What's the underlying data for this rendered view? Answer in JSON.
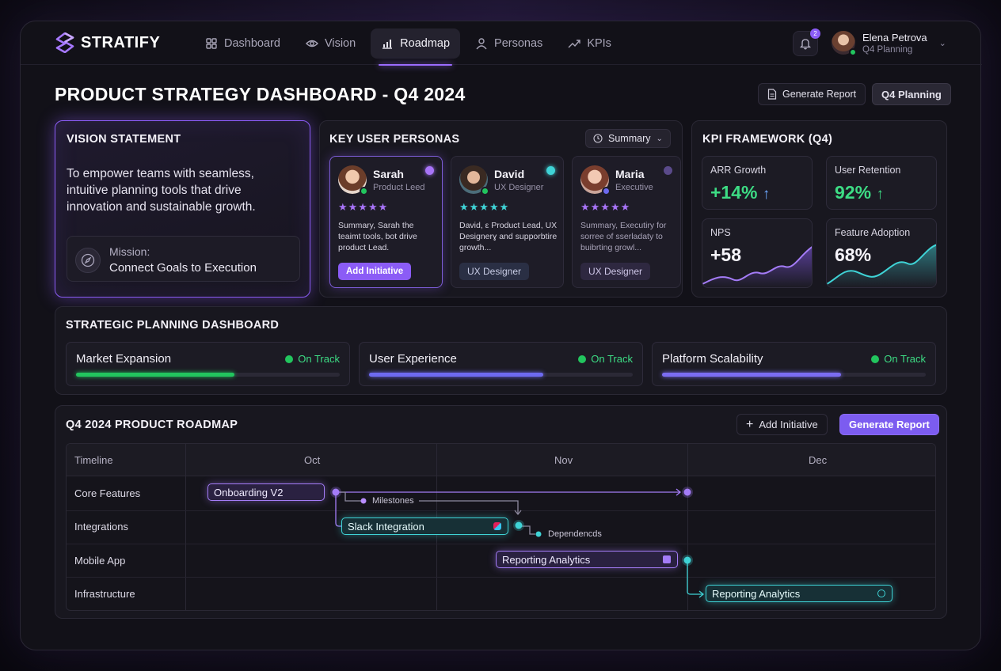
{
  "app": {
    "name": "STRATIFY",
    "accent": "#8b5cf6",
    "accent_secondary": "#3fd3d6"
  },
  "nav": [
    {
      "label": "Dashboard",
      "icon": "grid-icon"
    },
    {
      "label": "Vision",
      "icon": "eye-icon"
    },
    {
      "label": "Roadmap",
      "icon": "chart-icon",
      "active": true
    },
    {
      "label": "Personas",
      "icon": "person-icon"
    },
    {
      "label": "KPIs",
      "icon": "trend-icon"
    }
  ],
  "notifications": {
    "count": "2"
  },
  "user": {
    "name": "Elena Petrova",
    "role": "Q4 Planning"
  },
  "page": {
    "title": "PRODUCT STRATEGY DASHBOARD - Q4 2024",
    "generate_report_label": "Generate Report",
    "q4_planning_label": "Q4 Planning"
  },
  "vision": {
    "title": "VISION STATEMENT",
    "statement": "To empower teams with seamless, intuitive planning tools that drive innovation and sustainable growth.",
    "mission_label": "Mission:",
    "mission_value": "Connect Goals to Execution"
  },
  "personas": {
    "title": "KEY USER PERSONAS",
    "view_select": "Summary",
    "items": [
      {
        "name": "Sarah",
        "role": "Product Leed",
        "rating_stars": "★★★★★",
        "summary": "Summary, Sarah the teaimt tools, bot drive product Lead.",
        "tag": "Add Initiative"
      },
      {
        "name": "David",
        "role": "UX Designer",
        "rating_stars": "★★★★★",
        "summary": "David, ε Product Lead, UX Designerɣ and supporbtire growth...",
        "tag": "UX Designer"
      },
      {
        "name": "Maria",
        "role": "Executive",
        "rating_stars": "★★★★★",
        "summary": "Summary, Executiry for sorree of sserladaty to buibrting growl...",
        "tag": "UX Designer"
      }
    ]
  },
  "kpi": {
    "title": "KPI FRAMEWORK (Q4)",
    "tiles": [
      {
        "label": "ARR Growth",
        "value": "+14%"
      },
      {
        "label": "User Retention",
        "value": "92%"
      },
      {
        "label": "NPS",
        "value": "+58"
      },
      {
        "label": "Feature Adoption",
        "value": "68%"
      }
    ]
  },
  "strategic": {
    "title": "STRATEGIC PLANNING DASHBOARD",
    "tracks": [
      {
        "name": "Market Expansion",
        "status": "On Track",
        "progress": 0.6,
        "color": "#22c55e"
      },
      {
        "name": "User Experience",
        "status": "On Track",
        "progress": 0.66,
        "color": "#6d6af0"
      },
      {
        "name": "Platform Scalability",
        "status": "On Track",
        "progress": 0.68,
        "color": "#7b6cf2"
      }
    ]
  },
  "roadmap": {
    "title": "Q4 2024 PRODUCT ROADMAP",
    "add_label": "Add Initiative",
    "report_label": "Generate Report",
    "timeline_header": "Timeline",
    "months": [
      "Oct",
      "Nov",
      "Dec"
    ],
    "rows": [
      "Core Features",
      "Integrations",
      "Mobile App",
      "Infrastructure"
    ],
    "items": [
      {
        "label": "Onboarding V2",
        "row": "Core Features",
        "color": "purple"
      },
      {
        "label": "Slack Integration",
        "row": "Integrations",
        "color": "teal"
      },
      {
        "label": "Reporting Analytics",
        "row": "Mobile App",
        "color": "purple"
      },
      {
        "label": "Reporting Analytics",
        "row": "Infrastructure",
        "color": "teal"
      }
    ],
    "annotations": {
      "milestones": "Milestones",
      "dependencies": "Dependencds"
    }
  }
}
